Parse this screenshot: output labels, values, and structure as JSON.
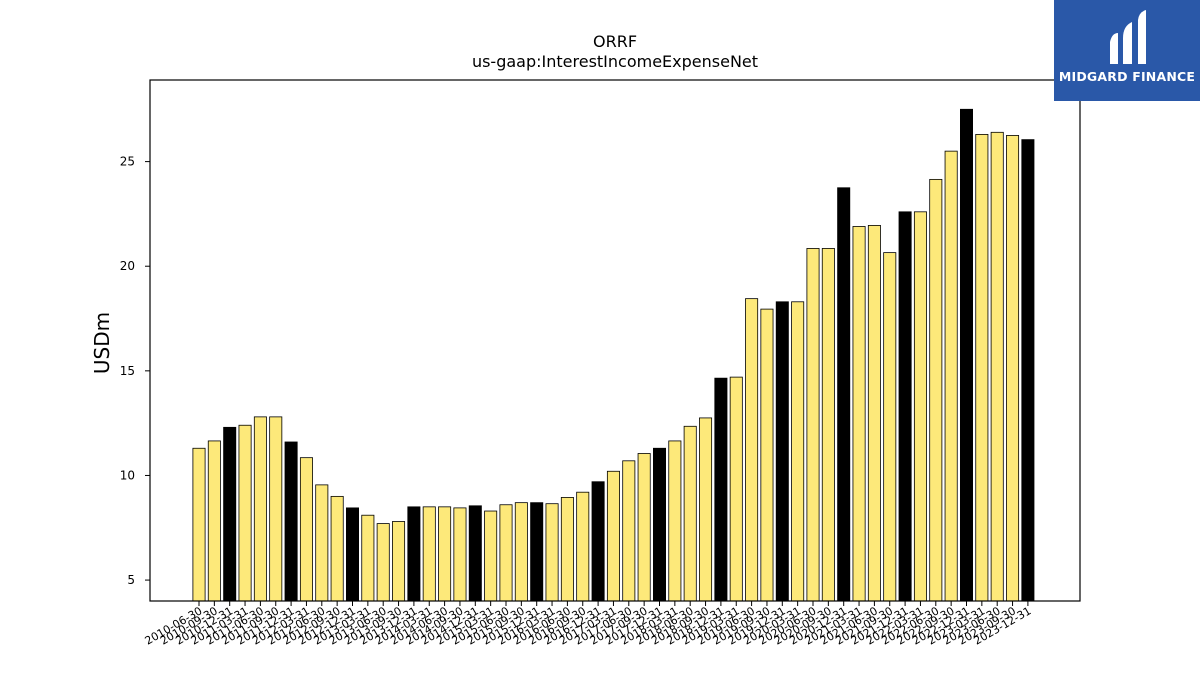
{
  "chart_data": {
    "type": "bar",
    "title": "ORRF",
    "subtitle": "us-gaap:InterestIncomeExpenseNet",
    "xlabel": "",
    "ylabel": "USDm",
    "ylim": [
      4,
      28.9
    ],
    "yticks": [
      5,
      10,
      15,
      20,
      25
    ],
    "grid": false,
    "colors": {
      "quarter": "#fde97a",
      "year_end": "#000000",
      "edge": "#000000"
    },
    "categories": [
      "2010-06-30",
      "2010-09-30",
      "2010-12-31",
      "2011-03-31",
      "2011-06-30",
      "2011-09-30",
      "2011-12-31",
      "2012-03-31",
      "2012-06-30",
      "2012-09-30",
      "2012-12-31",
      "2013-03-31",
      "2013-06-30",
      "2013-09-30",
      "2013-12-31",
      "2014-03-31",
      "2014-06-30",
      "2014-09-30",
      "2014-12-31",
      "2015-03-31",
      "2015-06-30",
      "2015-09-30",
      "2015-12-31",
      "2016-03-31",
      "2016-06-30",
      "2016-09-30",
      "2016-12-31",
      "2017-03-31",
      "2017-06-30",
      "2017-09-30",
      "2017-12-31",
      "2018-03-31",
      "2018-06-30",
      "2018-09-30",
      "2018-12-31",
      "2019-03-31",
      "2019-06-30",
      "2019-09-30",
      "2019-12-31",
      "2020-03-31",
      "2020-06-30",
      "2020-09-30",
      "2020-12-31",
      "2021-03-31",
      "2021-06-30",
      "2021-09-30",
      "2021-12-31",
      "2022-03-31",
      "2022-06-30",
      "2022-09-30",
      "2022-12-31",
      "2023-03-31",
      "2023-06-30",
      "2023-09-30",
      "2023-12-31"
    ],
    "values": [
      11.3,
      11.65,
      12.3,
      12.4,
      12.8,
      12.8,
      11.6,
      10.85,
      9.55,
      9.0,
      8.45,
      8.1,
      7.7,
      7.8,
      8.5,
      8.5,
      8.5,
      8.45,
      8.55,
      8.3,
      8.6,
      8.7,
      8.7,
      8.65,
      8.95,
      9.2,
      9.7,
      10.2,
      10.7,
      11.05,
      11.3,
      11.65,
      12.35,
      12.75,
      14.65,
      14.7,
      18.45,
      17.95,
      18.3,
      18.3,
      20.85,
      20.85,
      23.75,
      21.9,
      21.95,
      20.65,
      22.6,
      22.6,
      24.15,
      25.5,
      27.5,
      26.3,
      26.4,
      26.25,
      26.05
    ]
  },
  "logo": {
    "text": "MIDGARD FINANCE"
  }
}
